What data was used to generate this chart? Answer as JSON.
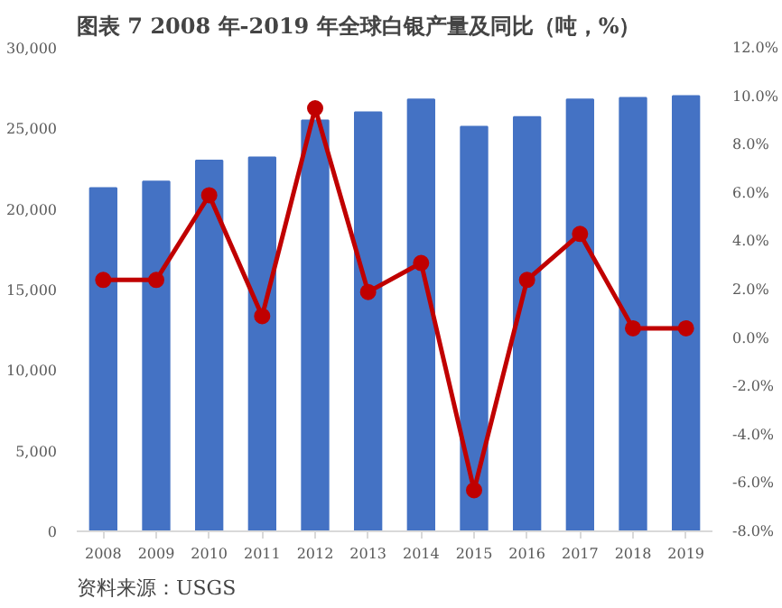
{
  "chart_data": {
    "type": "bar",
    "title": "图表 7 2008 年-2019 年全球白银产量及同比（吨，%）",
    "categories": [
      "2008",
      "2009",
      "2010",
      "2011",
      "2012",
      "2013",
      "2014",
      "2015",
      "2016",
      "2017",
      "2018",
      "2019"
    ],
    "series": [
      {
        "color": "#4472c4",
        "values": [
          21300,
          21700,
          23000,
          23200,
          25500,
          26000,
          26800,
          25100,
          25700,
          26800,
          26900,
          27000
        ]
      },
      {
        "type": "line",
        "axis": "y2",
        "color": "#c00000",
        "marker": "circle",
        "line_style": "solid",
        "values": [
          2.4,
          2.4,
          5.9,
          0.9,
          9.5,
          1.9,
          3.1,
          -6.3,
          2.4,
          4.3,
          0.4,
          0.4
        ]
      }
    ],
    "ylim": [
      0,
      30000
    ],
    "yticks": [
      {
        "value": 0,
        "label": "0"
      },
      {
        "value": 5000,
        "label": "5,000"
      },
      {
        "value": 10000,
        "label": "10,000"
      },
      {
        "value": 15000,
        "label": "15,000"
      },
      {
        "value": 20000,
        "label": "20,000"
      },
      {
        "value": 25000,
        "label": "25,000"
      },
      {
        "value": 30000,
        "label": "30,000"
      }
    ],
    "y2lim": [
      -8,
      12
    ],
    "y2ticks": [
      {
        "value": -8,
        "label": "-8.0%"
      },
      {
        "value": -6,
        "label": "-6.0%"
      },
      {
        "value": -4,
        "label": "-4.0%"
      },
      {
        "value": -2,
        "label": "-2.0%"
      },
      {
        "value": 0,
        "label": "0.0%"
      },
      {
        "value": 2,
        "label": "2.0%"
      },
      {
        "value": 4,
        "label": "4.0%"
      },
      {
        "value": 6,
        "label": "6.0%"
      },
      {
        "value": 8,
        "label": "8.0%"
      },
      {
        "value": 10,
        "label": "10.0%"
      },
      {
        "value": 12,
        "label": "12.0%"
      }
    ],
    "grid": false,
    "annotations": [
      "资料来源：USGS"
    ]
  }
}
